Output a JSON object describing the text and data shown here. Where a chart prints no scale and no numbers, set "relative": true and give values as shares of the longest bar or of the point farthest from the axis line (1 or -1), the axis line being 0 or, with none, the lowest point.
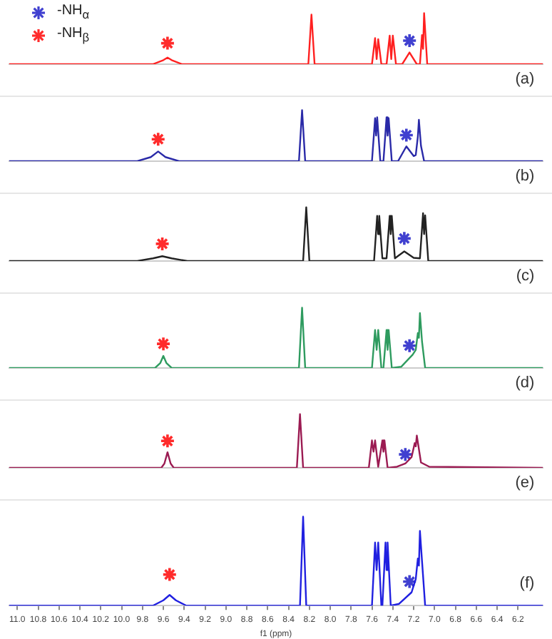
{
  "chart_data": [
    {
      "type": "line",
      "relative": true,
      "xlim": [
        11.08,
        5.96
      ],
      "tick_labels": false,
      "grid": false,
      "marker": "none",
      "legend": "top left",
      "annotations": [
        "(a)"
      ],
      "series": [
        {
          "color": "#ff2020",
          "x": [
            11.08,
            9.7,
            9.6,
            9.56,
            9.52,
            9.42,
            8.21,
            8.18,
            8.15,
            7.6,
            7.57,
            7.555,
            7.54,
            7.51,
            7.46,
            7.43,
            7.415,
            7.4,
            7.37,
            7.31,
            7.24,
            7.17,
            7.14,
            7.12,
            7.11,
            7.1,
            7.07,
            5.96
          ],
          "values": [
            0,
            0,
            0.08,
            0.13,
            0.08,
            0,
            0,
            0.97,
            0,
            0,
            0.51,
            0.1,
            0.49,
            0,
            0,
            0.56,
            0.1,
            0.56,
            0,
            0,
            0.23,
            0,
            0,
            0.57,
            0.3,
            1.0,
            0,
            0
          ]
        },
        {
          "type": "scatter",
          "marker": "cross",
          "name": "-NH$_{α}$",
          "color": "#4040d0",
          "x": [
            7.24
          ],
          "values": [
            0.46
          ]
        },
        {
          "type": "scatter",
          "marker": "cross",
          "name": "-NH$_{β}$",
          "color": "#ff2b2b",
          "x": [
            9.56
          ],
          "values": [
            0.41
          ]
        }
      ]
    },
    {
      "type": "line",
      "relative": true,
      "xlim": [
        11.08,
        5.96
      ],
      "tick_labels": false,
      "grid": false,
      "marker": "none",
      "annotations": [
        "(b)"
      ],
      "series": [
        {
          "color": "#2a2aa8",
          "x": [
            11.08,
            9.85,
            9.72,
            9.65,
            9.58,
            9.45,
            8.3,
            8.27,
            8.24,
            7.6,
            7.57,
            7.56,
            7.55,
            7.52,
            7.49,
            7.46,
            7.45,
            7.44,
            7.41,
            7.35,
            7.27,
            7.2,
            7.18,
            7.16,
            7.15,
            7.13,
            7.1,
            5.96
          ],
          "values": [
            0,
            0,
            0.08,
            0.19,
            0.08,
            0,
            0,
            1,
            0,
            0,
            0.84,
            0.5,
            0.86,
            0,
            0,
            0.86,
            0.5,
            0.84,
            0,
            0,
            0.29,
            0.1,
            0.12,
            0.48,
            0.81,
            0.3,
            0,
            0
          ]
        },
        {
          "type": "scatter",
          "marker": "cross",
          "color": "#4040d0",
          "x": [
            7.27
          ],
          "values": [
            0.51
          ]
        },
        {
          "type": "scatter",
          "marker": "cross",
          "color": "#ff2b2b",
          "x": [
            9.65
          ],
          "values": [
            0.43
          ]
        }
      ]
    },
    {
      "type": "line",
      "relative": true,
      "xlim": [
        11.08,
        5.96
      ],
      "tick_labels": false,
      "grid": false,
      "marker": "none",
      "annotations": [
        "(c)"
      ],
      "series": [
        {
          "color": "#222222",
          "x": [
            11.08,
            9.85,
            9.7,
            9.61,
            9.52,
            9.37,
            8.26,
            8.23,
            8.2,
            7.58,
            7.55,
            7.54,
            7.53,
            7.5,
            7.46,
            7.43,
            7.42,
            7.41,
            7.38,
            7.36,
            7.29,
            7.2,
            7.14,
            7.11,
            7.1,
            7.09,
            7.06,
            5.96
          ],
          "values": [
            0,
            0,
            0.05,
            0.09,
            0.05,
            0,
            0,
            1,
            0,
            0,
            0.84,
            0.5,
            0.84,
            0.05,
            0.05,
            0.84,
            0.5,
            0.84,
            0.05,
            0.08,
            0.18,
            0.06,
            0.05,
            0.89,
            0.5,
            0.85,
            0,
            0
          ]
        },
        {
          "type": "scatter",
          "marker": "cross",
          "color": "#4040d0",
          "x": [
            7.29
          ],
          "values": [
            0.42
          ]
        },
        {
          "type": "scatter",
          "marker": "cross",
          "color": "#ff2b2b",
          "x": [
            9.61
          ],
          "values": [
            0.32
          ]
        }
      ]
    },
    {
      "type": "line",
      "relative": true,
      "xlim": [
        11.08,
        5.96
      ],
      "tick_labels": false,
      "grid": false,
      "marker": "none",
      "annotations": [
        "(d)"
      ],
      "series": [
        {
          "color": "#2e9b5f",
          "x": [
            11.08,
            9.68,
            9.63,
            9.6,
            9.57,
            9.52,
            8.3,
            8.27,
            8.24,
            7.6,
            7.57,
            7.555,
            7.54,
            7.51,
            7.49,
            7.46,
            7.45,
            7.44,
            7.41,
            7.32,
            7.21,
            7.18,
            7.16,
            7.15,
            7.14,
            7.12,
            7.09,
            5.96
          ],
          "values": [
            0,
            0,
            0.08,
            0.2,
            0.08,
            0,
            0,
            1,
            0,
            0,
            0.63,
            0.3,
            0.63,
            0,
            0,
            0.63,
            0.3,
            0.63,
            0,
            0.02,
            0.22,
            0.3,
            0.58,
            0.5,
            0.91,
            0.44,
            0,
            0
          ]
        },
        {
          "type": "scatter",
          "marker": "cross",
          "color": "#4040d0",
          "x": [
            7.24
          ],
          "values": [
            0.37
          ]
        },
        {
          "type": "scatter",
          "marker": "cross",
          "color": "#ff2b2b",
          "x": [
            9.6
          ],
          "values": [
            0.4
          ]
        }
      ]
    },
    {
      "type": "line",
      "relative": true,
      "xlim": [
        11.08,
        5.96
      ],
      "tick_labels": false,
      "grid": false,
      "marker": "none",
      "annotations": [
        "(e)"
      ],
      "series": [
        {
          "color": "#9b1b52",
          "x": [
            11.08,
            9.62,
            9.59,
            9.56,
            9.53,
            9.5,
            8.32,
            8.29,
            8.26,
            7.63,
            7.6,
            7.585,
            7.57,
            7.54,
            7.53,
            7.5,
            7.49,
            7.48,
            7.45,
            7.36,
            7.28,
            7.22,
            7.19,
            7.18,
            7.17,
            7.13,
            7.05,
            5.96
          ],
          "values": [
            0,
            0,
            0.08,
            0.29,
            0.08,
            0,
            0,
            1,
            0,
            0,
            0.51,
            0.3,
            0.51,
            0.02,
            0.02,
            0.51,
            0.3,
            0.51,
            0,
            0.02,
            0.08,
            0.2,
            0.46,
            0.4,
            0.6,
            0.1,
            0.02,
            0
          ]
        },
        {
          "type": "scatter",
          "marker": "cross",
          "color": "#4040d0",
          "x": [
            7.28
          ],
          "values": [
            0.25
          ]
        },
        {
          "type": "scatter",
          "marker": "cross",
          "color": "#ff2b2b",
          "x": [
            9.56
          ],
          "values": [
            0.5
          ]
        }
      ]
    },
    {
      "type": "line",
      "relative": true,
      "xlim": [
        11.08,
        5.96
      ],
      "tick_labels": "x",
      "grid": false,
      "marker": "none",
      "xlabel": "f1 (ppm)",
      "annotations": [
        "(f)"
      ],
      "xticks": [
        {
          "value": 11,
          "label": "11.0"
        },
        {
          "value": 10.8,
          "label": "10.8"
        },
        {
          "value": 10.6,
          "label": "10.6"
        },
        {
          "value": 10.4,
          "label": "10.4"
        },
        {
          "value": 10.2,
          "label": "10.2"
        },
        {
          "value": 10,
          "label": "10.0"
        },
        {
          "value": 9.8,
          "label": "9.8"
        },
        {
          "value": 9.6,
          "label": "9.6"
        },
        {
          "value": 9.4,
          "label": "9.4"
        },
        {
          "value": 9.2,
          "label": "9.2"
        },
        {
          "value": 9,
          "label": "9.0"
        },
        {
          "value": 8.8,
          "label": "8.8"
        },
        {
          "value": 8.6,
          "label": "8.6"
        },
        {
          "value": 8.4,
          "label": "8.4"
        },
        {
          "value": 8.2,
          "label": "8.2"
        },
        {
          "value": 8,
          "label": "8.0"
        },
        {
          "value": 7.8,
          "label": "7.8"
        },
        {
          "value": 7.6,
          "label": "7.6"
        },
        {
          "value": 7.4,
          "label": "7.4"
        },
        {
          "value": 7.2,
          "label": "7.2"
        },
        {
          "value": 7,
          "label": "7.0"
        },
        {
          "value": 6.8,
          "label": "6.8"
        },
        {
          "value": 6.6,
          "label": "6.6"
        },
        {
          "value": 6.4,
          "label": "6.4"
        },
        {
          "value": 6.2,
          "label": "6.2"
        }
      ],
      "series": [
        {
          "color": "#2020e0",
          "x": [
            11.08,
            9.7,
            9.6,
            9.54,
            9.48,
            9.38,
            8.29,
            8.26,
            8.23,
            7.6,
            7.57,
            7.555,
            7.54,
            7.51,
            7.5,
            7.47,
            7.46,
            7.45,
            7.42,
            7.34,
            7.22,
            7.18,
            7.16,
            7.15,
            7.14,
            7.12,
            7.09,
            5.96
          ],
          "values": [
            0,
            0,
            0.06,
            0.12,
            0.06,
            0,
            0,
            1,
            0,
            0,
            0.71,
            0.4,
            0.71,
            0,
            0,
            0.71,
            0.4,
            0.71,
            0,
            0.02,
            0.15,
            0.3,
            0.53,
            0.45,
            0.84,
            0.5,
            0,
            0
          ]
        },
        {
          "type": "scatter",
          "marker": "cross",
          "color": "#4040d0",
          "x": [
            7.24
          ],
          "values": [
            0.27
          ]
        },
        {
          "type": "scatter",
          "marker": "cross",
          "color": "#ff2b2b",
          "x": [
            9.54
          ],
          "values": [
            0.35
          ]
        }
      ]
    }
  ]
}
